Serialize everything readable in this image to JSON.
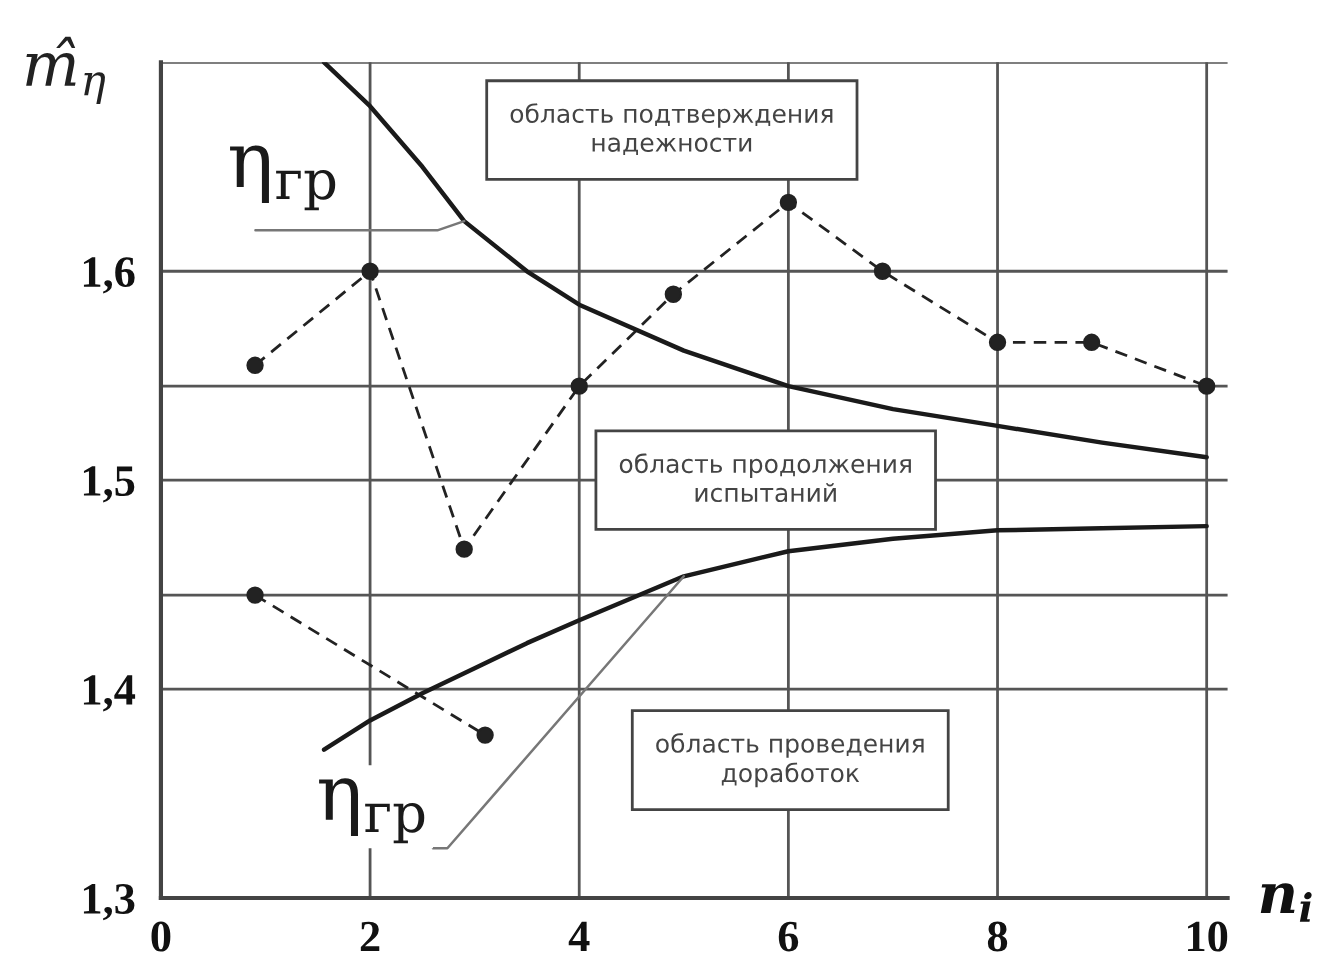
{
  "chart_data": {
    "type": "line",
    "xlabel": "n$_{i}$",
    "ylabel": "m̂$_{η}$",
    "xlim": [
      0,
      10.2
    ],
    "xticks": [
      0,
      2,
      4,
      6,
      8,
      10
    ],
    "ylim": [
      1.3,
      1.7
    ],
    "yticks": [
      {
        "value": 1.3,
        "label": "1,3"
      },
      {
        "value": 1.4,
        "label": "1,4"
      },
      {
        "value": 1.445,
        "label": null
      },
      {
        "value": 1.5,
        "label": "1,5"
      },
      {
        "value": 1.545,
        "label": null
      },
      {
        "value": 1.6,
        "label": "1,6"
      },
      {
        "value": 1.7,
        "label": null
      }
    ],
    "grid": true,
    "series": [
      {
        "color": "#222222",
        "line_style": "dashed",
        "marker": "circle",
        "x": [
          0.9,
          2,
          2.9,
          4,
          4.9,
          6,
          6.9,
          8,
          8.9,
          10
        ],
        "values": [
          1.555,
          1.6,
          1.467,
          1.545,
          1.589,
          1.633,
          1.6,
          1.566,
          1.566,
          1.545
        ]
      },
      {
        "color": "#222222",
        "line_style": "dashed",
        "marker": "circle",
        "x": [
          0.9,
          3.1
        ],
        "values": [
          1.445,
          1.378
        ]
      },
      {
        "name": "η$_{гр}$",
        "color": "#1a1a1a",
        "line_style": "solid",
        "marker": "none",
        "x": [
          1.56,
          2,
          2.5,
          2.9,
          3.5,
          4,
          5,
          6,
          7,
          8,
          9,
          10
        ],
        "values": [
          1.7,
          1.679,
          1.65,
          1.624,
          1.6,
          1.584,
          1.562,
          1.545,
          1.534,
          1.526,
          1.518,
          1.511
        ]
      },
      {
        "name": "η$_{гр}$",
        "color": "#1a1a1a",
        "line_style": "solid",
        "marker": "none",
        "x": [
          1.56,
          2,
          2.5,
          3,
          3.5,
          4,
          5,
          6,
          7,
          8,
          9,
          10
        ],
        "values": [
          1.371,
          1.385,
          1.398,
          1.41,
          1.422,
          1.433,
          1.454,
          1.466,
          1.472,
          1.476,
          1.477,
          1.478
        ]
      }
    ],
    "annotations": [
      "область подтверждения\nнадежности",
      "область продолжения\nиспытаний",
      "область проведения\nдоработок"
    ]
  }
}
